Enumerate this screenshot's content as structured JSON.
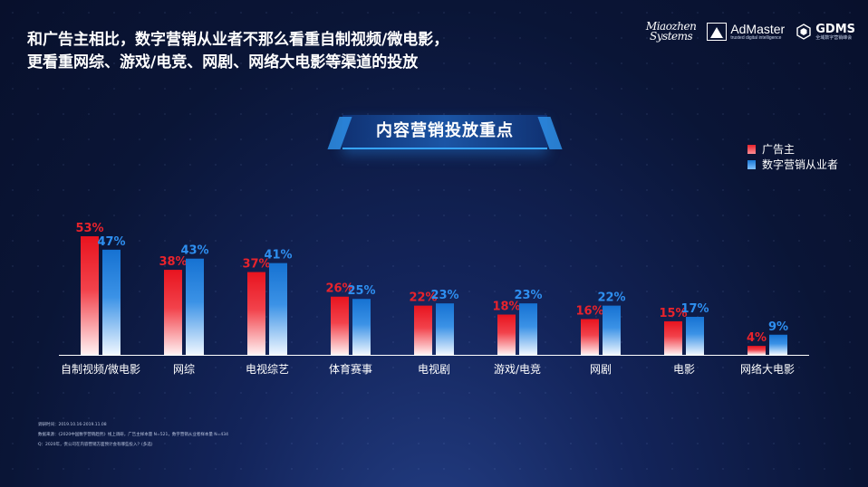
{
  "headline": {
    "line1": "和广告主相比，数字营销从业者不那么看重自制视频/微电影，",
    "line2": "更看重网综、游戏/电竞、网剧、网络大电影等渠道的投放"
  },
  "logos": {
    "miaozhen_line1": "Miaozhen",
    "miaozhen_line2": "Systems",
    "admaster": "AdMaster",
    "admaster_sub": "trusted digital intelligence",
    "gdms": "GDMS",
    "gdms_sub": "全域数字营销峰会"
  },
  "colors": {
    "advertiser": "#e8232c",
    "marketer": "#1a78d6"
  },
  "chart_data": {
    "type": "bar",
    "title": "内容营销投放重点",
    "categories": [
      "自制视频/微电影",
      "网综",
      "电视综艺",
      "体育赛事",
      "电视剧",
      "游戏/电竞",
      "网剧",
      "电影",
      "网络大电影"
    ],
    "series": [
      {
        "name": "广告主",
        "values": [
          53,
          38,
          37,
          26,
          22,
          18,
          16,
          15,
          4
        ],
        "labels": [
          "53%",
          "38%",
          "37%",
          "26%",
          "22%",
          "18%",
          "16%",
          "15%",
          "4%"
        ]
      },
      {
        "name": "数字营销从业者",
        "values": [
          47,
          43,
          41,
          25,
          23,
          23,
          22,
          17,
          9
        ],
        "labels": [
          "47%",
          "43%",
          "41%",
          "25%",
          "23%",
          "23%",
          "22%",
          "17%",
          "9%"
        ]
      }
    ],
    "unit": "%",
    "ylim": [
      0,
      53
    ],
    "legend_position": "top-right",
    "grid": false
  },
  "footnotes": {
    "line1": "调研时间：2019.10.16-2019.11.08",
    "line2": "数据来源：《2020中国数字营销趋势》线上调研，广告主样本量 N=521，数字营销从业者样本量 N=434",
    "line3": "Q：2020年，贵公司在内容营销方面预计会有哪些投入？(多选)"
  }
}
